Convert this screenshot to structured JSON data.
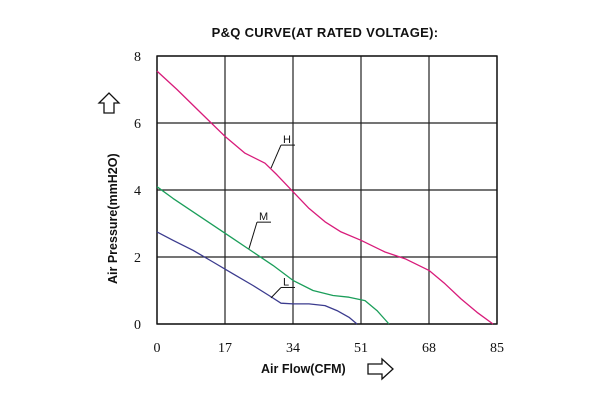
{
  "chart_data": {
    "type": "line",
    "title": "P&Q CURVE(AT RATED VOLTAGE):",
    "xlabel": "Air Flow(CFM)",
    "ylabel": "Air Pressure(mmH2O)",
    "xlim": [
      0,
      85
    ],
    "ylim": [
      0,
      8
    ],
    "x_ticks": [
      "0",
      "17",
      "34",
      "51",
      "68",
      "85"
    ],
    "y_ticks": [
      "0",
      "2",
      "4",
      "6",
      "8"
    ],
    "grid": true,
    "series": [
      {
        "name": "H",
        "color": "#d81b7a",
        "points": [
          [
            0,
            7.55
          ],
          [
            5,
            7.0
          ],
          [
            11,
            6.3
          ],
          [
            17,
            5.6
          ],
          [
            22,
            5.1
          ],
          [
            27,
            4.8
          ],
          [
            30,
            4.45
          ],
          [
            34,
            3.95
          ],
          [
            38,
            3.45
          ],
          [
            42,
            3.05
          ],
          [
            46,
            2.75
          ],
          [
            51,
            2.5
          ],
          [
            57,
            2.15
          ],
          [
            62,
            1.95
          ],
          [
            68,
            1.6
          ],
          [
            72,
            1.2
          ],
          [
            76,
            0.75
          ],
          [
            80,
            0.35
          ],
          [
            84,
            0.0
          ]
        ]
      },
      {
        "name": "M",
        "color": "#1b9e5a",
        "points": [
          [
            0,
            4.1
          ],
          [
            4,
            3.75
          ],
          [
            9,
            3.35
          ],
          [
            14,
            2.95
          ],
          [
            19,
            2.55
          ],
          [
            24,
            2.15
          ],
          [
            29,
            1.75
          ],
          [
            34,
            1.3
          ],
          [
            39,
            1.0
          ],
          [
            44,
            0.85
          ],
          [
            48,
            0.8
          ],
          [
            52,
            0.7
          ],
          [
            55,
            0.4
          ],
          [
            58,
            0.0
          ]
        ]
      },
      {
        "name": "L",
        "color": "#3b3b8e",
        "points": [
          [
            0,
            2.75
          ],
          [
            4,
            2.5
          ],
          [
            9,
            2.2
          ],
          [
            14,
            1.85
          ],
          [
            19,
            1.5
          ],
          [
            24,
            1.15
          ],
          [
            28,
            0.85
          ],
          [
            31,
            0.62
          ],
          [
            34,
            0.6
          ],
          [
            38,
            0.6
          ],
          [
            42,
            0.55
          ],
          [
            45,
            0.4
          ],
          [
            48,
            0.2
          ],
          [
            50,
            0.0
          ]
        ]
      }
    ],
    "curve_labels": [
      {
        "name": "H",
        "text": "H",
        "anchor": [
          28.5,
          4.65
        ],
        "label_at": [
          31,
          5.4
        ]
      },
      {
        "name": "M",
        "text": "M",
        "anchor": [
          23,
          2.25
        ],
        "label_at": [
          25,
          3.1
        ]
      },
      {
        "name": "L",
        "text": "L",
        "anchor": [
          28.5,
          0.78
        ],
        "label_at": [
          31,
          1.15
        ]
      }
    ]
  }
}
